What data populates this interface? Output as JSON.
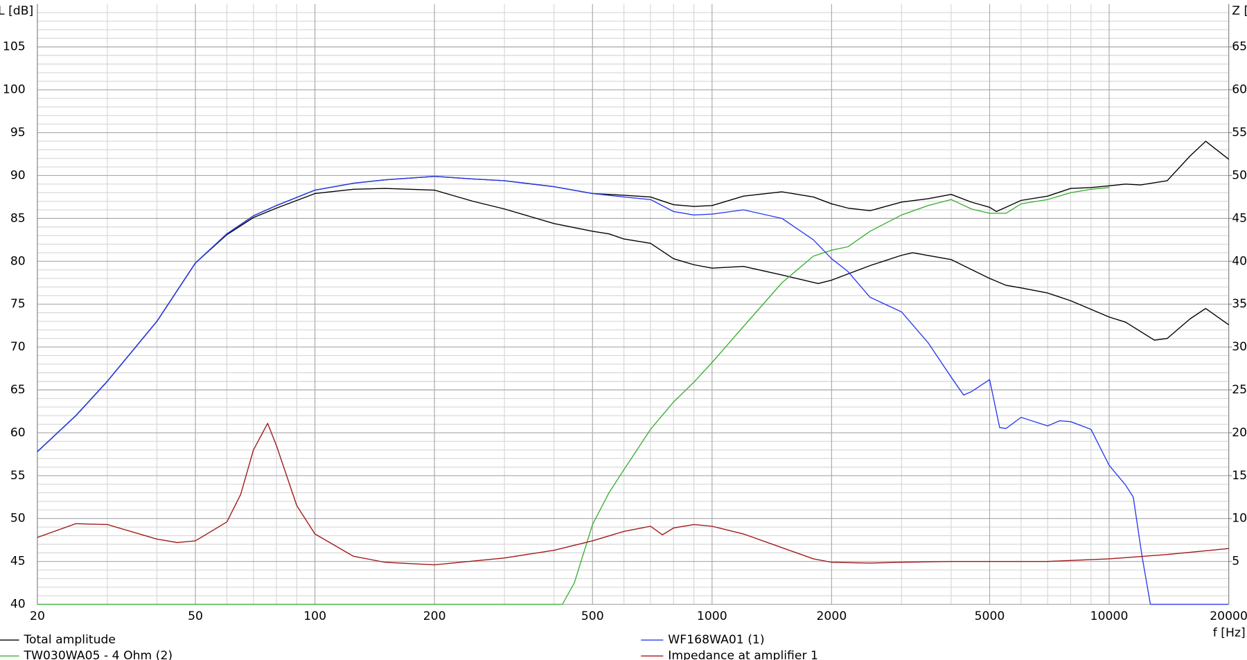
{
  "chart_data": {
    "type": "line",
    "xscale": "log",
    "ylabel": "L [dB]",
    "y2label": "Z [",
    "xlabel": "f [Hz]",
    "xlim": [
      20,
      20000
    ],
    "xticks": [
      20,
      50,
      100,
      200,
      500,
      1000,
      2000,
      5000,
      10000,
      20000
    ],
    "xminor": [
      30,
      40,
      60,
      70,
      80,
      90,
      300,
      400,
      600,
      700,
      800,
      900,
      3000,
      4000,
      6000,
      7000,
      8000,
      9000
    ],
    "ylim": [
      40,
      110
    ],
    "yticks": [
      40,
      45,
      50,
      55,
      60,
      65,
      70,
      75,
      80,
      85,
      90,
      95,
      100,
      105
    ],
    "yminor": [
      41,
      42,
      43,
      44,
      46,
      47,
      48,
      49,
      51,
      52,
      53,
      54,
      56,
      57,
      58,
      59,
      61,
      62,
      63,
      64,
      66,
      67,
      68,
      69,
      71,
      72,
      73,
      74,
      76,
      77,
      78,
      79,
      81,
      82,
      83,
      84,
      86,
      87,
      88,
      89,
      91,
      92,
      93,
      94,
      96,
      97,
      98,
      99,
      101,
      102,
      103,
      104,
      106,
      107,
      108,
      109
    ],
    "y2lim": [
      0,
      70
    ],
    "y2ticks": [
      5,
      10,
      15,
      20,
      25,
      30,
      35,
      40,
      45,
      50,
      55,
      60,
      65
    ],
    "grid": true,
    "series": [
      {
        "name": "Total amplitude",
        "color": "#000000",
        "x": [
          20,
          25,
          30,
          40,
          50,
          60,
          70,
          80,
          100,
          125,
          150,
          200,
          250,
          300,
          400,
          500,
          600,
          700,
          800,
          900,
          1000,
          1200,
          1500,
          1800,
          2000,
          2200,
          2500,
          3000,
          3500,
          4000,
          4500,
          5000,
          5200,
          6000,
          7000,
          8000,
          9000,
          10000,
          11000,
          12000,
          14000,
          16000,
          17500,
          20000
        ],
        "values": [
          57.8,
          62,
          66,
          73,
          79.8,
          83.2,
          85.3,
          86.5,
          88.3,
          89.1,
          89.5,
          89.9,
          89.6,
          89.4,
          88.7,
          87.9,
          87.7,
          87.5,
          86.6,
          86.4,
          86.5,
          87.6,
          88.1,
          87.5,
          86.7,
          86.2,
          85.9,
          86.9,
          87.3,
          87.8,
          86.9,
          86.3,
          85.8,
          87.1,
          87.6,
          88.5,
          88.6,
          88.8,
          89.0,
          88.9,
          89.4,
          92.3,
          94.0,
          91.9
        ]
      },
      {
        "name": "TW030WA05 - 4 Ohm (2)",
        "color": "#3cb034",
        "x": [
          20,
          100,
          400,
          420,
          450,
          500,
          550,
          600,
          700,
          800,
          900,
          1000,
          1200,
          1500,
          1800,
          2000,
          2200,
          2500,
          3000,
          3500,
          4000,
          4500,
          5000,
          5500,
          6000,
          7000,
          8000,
          9000,
          10000
        ],
        "values": [
          40,
          40,
          40,
          40,
          42.5,
          49.3,
          53,
          55.7,
          60.4,
          63.6,
          65.9,
          68.2,
          72.4,
          77.5,
          80.6,
          81.3,
          81.7,
          83.5,
          85.4,
          86.5,
          87.2,
          86.1,
          85.6,
          85.6,
          86.7,
          87.2,
          88.0,
          88.4,
          88.6
        ]
      },
      {
        "name": "WF168WA01 (1)",
        "color": "#2a3cf0",
        "x": [
          20,
          25,
          30,
          40,
          50,
          60,
          70,
          80,
          100,
          125,
          150,
          200,
          250,
          300,
          400,
          500,
          600,
          700,
          800,
          900,
          1000,
          1200,
          1500,
          1800,
          2000,
          2200,
          2500,
          3000,
          3500,
          4000,
          4300,
          4500,
          5000,
          5300,
          5500,
          6000,
          7000,
          7500,
          8000,
          9000,
          10000,
          11000,
          11500,
          12100,
          12700,
          20000
        ],
        "values": [
          57.8,
          62,
          66,
          73,
          79.8,
          83.2,
          85.3,
          86.5,
          88.3,
          89.1,
          89.5,
          89.9,
          89.6,
          89.4,
          88.7,
          87.9,
          87.5,
          87.2,
          85.8,
          85.4,
          85.5,
          86.0,
          85.0,
          82.5,
          80.3,
          78.8,
          75.8,
          74.1,
          70.5,
          66.5,
          64.4,
          64.8,
          66.2,
          60.6,
          60.5,
          61.8,
          60.8,
          61.4,
          61.3,
          60.4,
          56.2,
          53.9,
          52.5,
          45.6,
          40,
          40
        ]
      },
      {
        "name": "Impedance at amplifier 1",
        "color": "#a01818",
        "axis": "y2",
        "x": [
          20,
          25,
          30,
          40,
          45,
          50,
          60,
          65,
          70,
          76,
          80,
          90,
          100,
          125,
          150,
          200,
          300,
          400,
          500,
          600,
          700,
          750,
          800,
          900,
          1000,
          1200,
          1500,
          1800,
          2000,
          2500,
          3000,
          4000,
          5000,
          7000,
          10000,
          14000,
          20000
        ],
        "values": [
          7.8,
          9.4,
          9.3,
          7.6,
          7.2,
          7.4,
          9.6,
          12.8,
          18,
          21.1,
          18.5,
          11.5,
          8.2,
          5.6,
          4.9,
          4.6,
          5.4,
          6.3,
          7.4,
          8.5,
          9.1,
          8.1,
          8.9,
          9.3,
          9.1,
          8.2,
          6.6,
          5.3,
          4.9,
          4.8,
          4.9,
          5.0,
          5.0,
          5.0,
          5.3,
          5.8,
          6.5
        ]
      },
      {
        "color": "#000000",
        "x": [
          20,
          25,
          30,
          40,
          50,
          60,
          70,
          80,
          100,
          125,
          150,
          200,
          250,
          300,
          400,
          500,
          550,
          600,
          700,
          800,
          900,
          1000,
          1200,
          1500,
          1850,
          2000,
          2500,
          3000,
          3200,
          4000,
          5000,
          5500,
          6000,
          7000,
          8000,
          10000,
          11000,
          13000,
          14000,
          16000,
          17500,
          20000
        ],
        "values": [
          57.8,
          62,
          66,
          73,
          79.8,
          83.1,
          85.1,
          86.2,
          87.9,
          88.4,
          88.5,
          88.3,
          87.0,
          86.1,
          84.4,
          83.5,
          83.2,
          82.6,
          82.1,
          80.3,
          79.6,
          79.2,
          79.4,
          78.4,
          77.4,
          77.8,
          79.5,
          80.7,
          81.0,
          80.2,
          78.0,
          77.2,
          76.9,
          76.3,
          75.4,
          73.5,
          72.9,
          70.8,
          71.0,
          73.3,
          74.5,
          72.6
        ]
      }
    ]
  }
}
